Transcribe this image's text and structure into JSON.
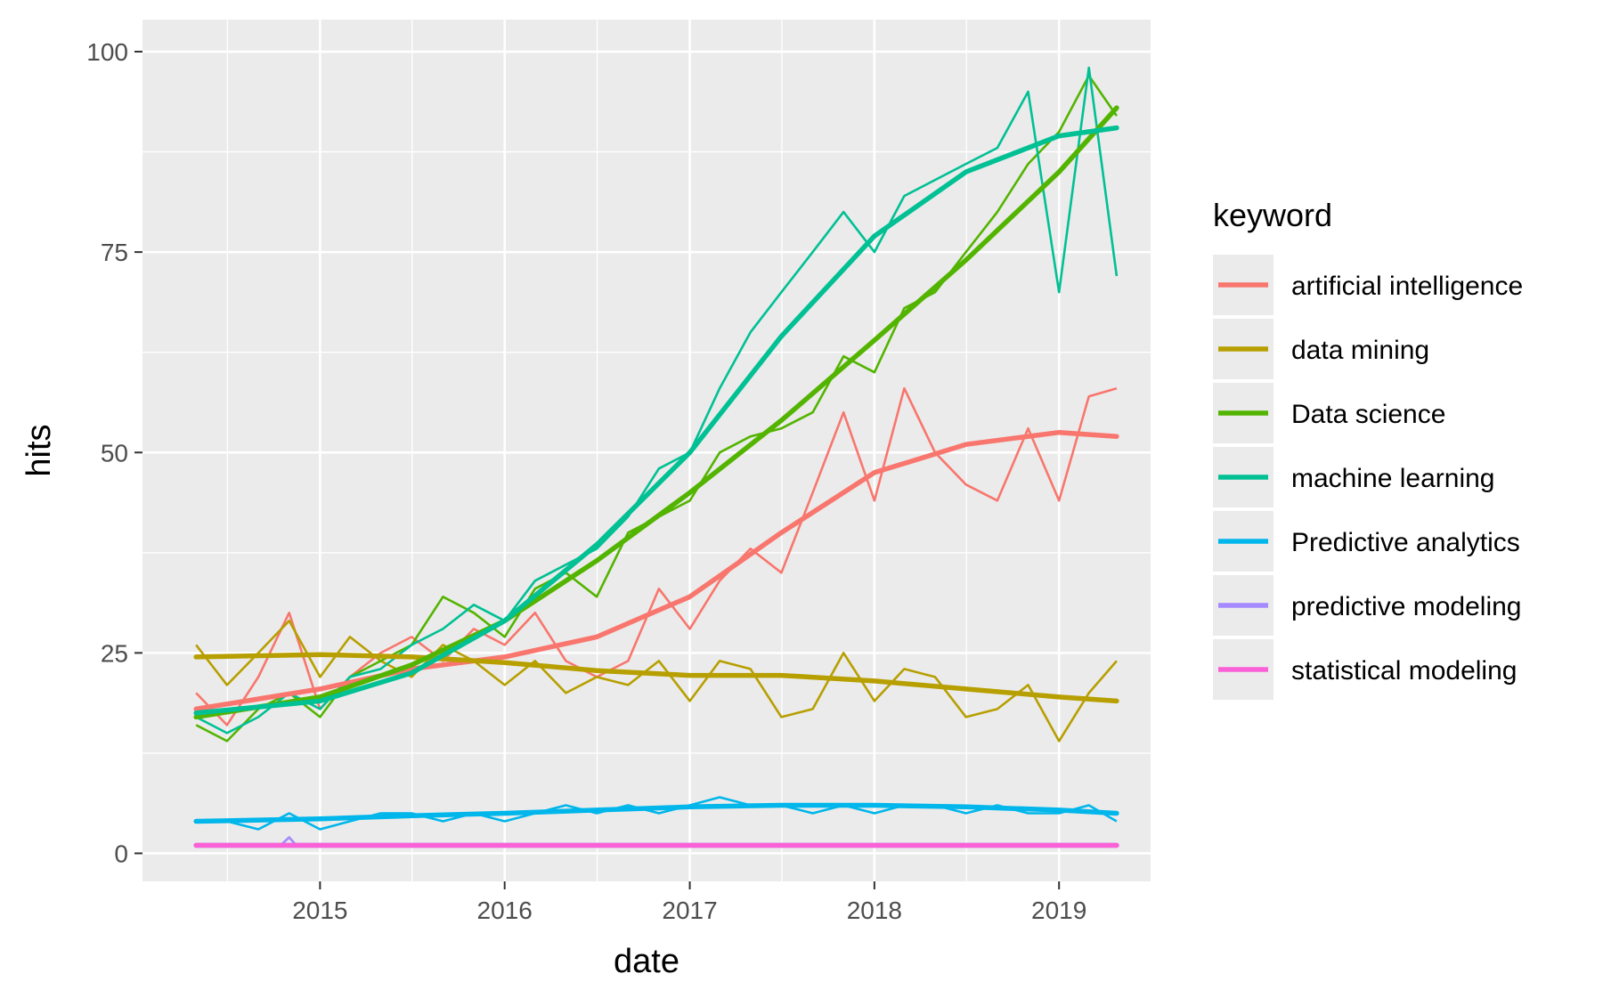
{
  "chart_data": {
    "type": "line",
    "xlabel": "date",
    "ylabel": "hits",
    "xlim": [
      "2014-01-15",
      "2019-07-01"
    ],
    "ylim": [
      -3.5,
      104
    ],
    "x_ticks": [
      "2015-01-01",
      "2016-01-01",
      "2017-01-01",
      "2018-01-01",
      "2019-01-01"
    ],
    "x_tick_labels": [
      "2015",
      "2016",
      "2017",
      "2018",
      "2019"
    ],
    "y_ticks": [
      0,
      25,
      50,
      75,
      100
    ],
    "y_tick_labels": [
      "0",
      "25",
      "50",
      "75",
      "100"
    ],
    "grid": true,
    "background": "#ebebeb",
    "legend": {
      "title": "keyword",
      "placement": "right",
      "entries": [
        "artificial intelligence",
        "data mining",
        "Data science",
        "machine learning",
        "Predictive analytics",
        "predictive modeling",
        "statistical modeling"
      ]
    },
    "series": [
      {
        "name": "artificial intelligence",
        "color": "#f8766d",
        "x": [
          "2014-05-01",
          "2014-07-01",
          "2014-09-01",
          "2014-11-01",
          "2015-01-01",
          "2015-03-01",
          "2015-05-01",
          "2015-07-01",
          "2015-09-01",
          "2015-11-01",
          "2016-01-01",
          "2016-03-01",
          "2016-05-01",
          "2016-07-01",
          "2016-09-01",
          "2016-11-01",
          "2017-01-01",
          "2017-03-01",
          "2017-05-01",
          "2017-07-01",
          "2017-09-01",
          "2017-11-01",
          "2018-01-01",
          "2018-03-01",
          "2018-05-01",
          "2018-07-01",
          "2018-09-01",
          "2018-11-01",
          "2019-01-01",
          "2019-03-01",
          "2019-04-25"
        ],
        "values": [
          20,
          16,
          22,
          30,
          18,
          22,
          25,
          27,
          24,
          28,
          26,
          30,
          24,
          22,
          24,
          33,
          28,
          34,
          38,
          35,
          45,
          55,
          44,
          58,
          50,
          46,
          44,
          53,
          44,
          57,
          58
        ],
        "smooth_x": [
          "2014-05-01",
          "2015-01-01",
          "2015-07-01",
          "2016-01-01",
          "2016-07-01",
          "2017-01-01",
          "2017-07-01",
          "2018-01-01",
          "2018-07-01",
          "2019-01-01",
          "2019-04-25"
        ],
        "smooth_values": [
          18,
          20.5,
          23,
          24.5,
          27,
          32,
          40,
          47.5,
          51,
          52.5,
          52
        ]
      },
      {
        "name": "data mining",
        "color": "#b79f00",
        "x": [
          "2014-05-01",
          "2014-07-01",
          "2014-09-01",
          "2014-11-01",
          "2015-01-01",
          "2015-03-01",
          "2015-05-01",
          "2015-07-01",
          "2015-09-01",
          "2015-11-01",
          "2016-01-01",
          "2016-03-01",
          "2016-05-01",
          "2016-07-01",
          "2016-09-01",
          "2016-11-01",
          "2017-01-01",
          "2017-03-01",
          "2017-05-01",
          "2017-07-01",
          "2017-09-01",
          "2017-11-01",
          "2018-01-01",
          "2018-03-01",
          "2018-05-01",
          "2018-07-01",
          "2018-09-01",
          "2018-11-01",
          "2019-01-01",
          "2019-03-01",
          "2019-04-25"
        ],
        "values": [
          26,
          21,
          25,
          29,
          22,
          27,
          24,
          22,
          26,
          24,
          21,
          24,
          20,
          22,
          21,
          24,
          19,
          24,
          23,
          17,
          18,
          25,
          19,
          23,
          22,
          17,
          18,
          21,
          14,
          20,
          24
        ],
        "smooth_x": [
          "2014-05-01",
          "2015-01-01",
          "2015-07-01",
          "2016-01-01",
          "2016-07-01",
          "2017-01-01",
          "2017-07-01",
          "2018-01-01",
          "2018-07-01",
          "2019-01-01",
          "2019-04-25"
        ],
        "smooth_values": [
          24.5,
          24.8,
          24.5,
          23.8,
          22.8,
          22.2,
          22.2,
          21.5,
          20.5,
          19.5,
          19
        ]
      },
      {
        "name": "Data science",
        "color": "#53b400",
        "x": [
          "2014-05-01",
          "2014-07-01",
          "2014-09-01",
          "2014-11-01",
          "2015-01-01",
          "2015-03-01",
          "2015-05-01",
          "2015-07-01",
          "2015-09-01",
          "2015-11-01",
          "2016-01-01",
          "2016-03-01",
          "2016-05-01",
          "2016-07-01",
          "2016-09-01",
          "2016-11-01",
          "2017-01-01",
          "2017-03-01",
          "2017-05-01",
          "2017-07-01",
          "2017-09-01",
          "2017-11-01",
          "2018-01-01",
          "2018-03-01",
          "2018-05-01",
          "2018-07-01",
          "2018-09-01",
          "2018-11-01",
          "2019-01-01",
          "2019-03-01",
          "2019-04-25"
        ],
        "values": [
          16,
          14,
          18,
          20,
          17,
          22,
          24,
          26,
          32,
          30,
          27,
          33,
          35,
          32,
          40,
          42,
          44,
          50,
          52,
          53,
          55,
          62,
          60,
          68,
          70,
          75,
          80,
          86,
          90,
          97,
          92
        ],
        "smooth_x": [
          "2014-05-01",
          "2015-01-01",
          "2015-07-01",
          "2016-01-01",
          "2016-07-01",
          "2017-01-01",
          "2017-07-01",
          "2018-01-01",
          "2018-07-01",
          "2019-01-01",
          "2019-04-25"
        ],
        "smooth_values": [
          17,
          19.5,
          23.5,
          29,
          36.5,
          45,
          54,
          64,
          74,
          85,
          93
        ]
      },
      {
        "name": "machine learning",
        "color": "#00c094",
        "x": [
          "2014-05-01",
          "2014-07-01",
          "2014-09-01",
          "2014-11-01",
          "2015-01-01",
          "2015-03-01",
          "2015-05-01",
          "2015-07-01",
          "2015-09-01",
          "2015-11-01",
          "2016-01-01",
          "2016-03-01",
          "2016-05-01",
          "2016-07-01",
          "2016-09-01",
          "2016-11-01",
          "2017-01-01",
          "2017-03-01",
          "2017-05-01",
          "2017-07-01",
          "2017-09-01",
          "2017-11-01",
          "2018-01-01",
          "2018-03-01",
          "2018-05-01",
          "2018-07-01",
          "2018-09-01",
          "2018-11-01",
          "2019-01-01",
          "2019-03-01",
          "2019-04-25"
        ],
        "values": [
          17,
          15,
          17,
          20,
          18,
          22,
          23,
          26,
          28,
          31,
          29,
          34,
          36,
          38,
          42,
          48,
          50,
          58,
          65,
          70,
          75,
          80,
          75,
          82,
          84,
          86,
          88,
          95,
          70,
          98,
          72
        ],
        "smooth_x": [
          "2014-05-01",
          "2015-01-01",
          "2015-07-01",
          "2016-01-01",
          "2016-07-01",
          "2017-01-01",
          "2017-07-01",
          "2018-01-01",
          "2018-07-01",
          "2019-01-01",
          "2019-04-25"
        ],
        "smooth_values": [
          17.5,
          19,
          22.5,
          29,
          38.5,
          50,
          64.5,
          77,
          85,
          89.5,
          90.5
        ]
      },
      {
        "name": "Predictive analytics",
        "color": "#00b6eb",
        "x": [
          "2014-05-01",
          "2014-07-01",
          "2014-09-01",
          "2014-11-01",
          "2015-01-01",
          "2015-03-01",
          "2015-05-01",
          "2015-07-01",
          "2015-09-01",
          "2015-11-01",
          "2016-01-01",
          "2016-03-01",
          "2016-05-01",
          "2016-07-01",
          "2016-09-01",
          "2016-11-01",
          "2017-01-01",
          "2017-03-01",
          "2017-05-01",
          "2017-07-01",
          "2017-09-01",
          "2017-11-01",
          "2018-01-01",
          "2018-03-01",
          "2018-05-01",
          "2018-07-01",
          "2018-09-01",
          "2018-11-01",
          "2019-01-01",
          "2019-03-01",
          "2019-04-25"
        ],
        "values": [
          4,
          4,
          3,
          5,
          3,
          4,
          5,
          5,
          4,
          5,
          4,
          5,
          6,
          5,
          6,
          5,
          6,
          7,
          6,
          6,
          5,
          6,
          5,
          6,
          6,
          5,
          6,
          5,
          5,
          6,
          4
        ],
        "smooth_x": [
          "2014-05-01",
          "2015-01-01",
          "2015-07-01",
          "2016-01-01",
          "2016-07-01",
          "2017-01-01",
          "2017-07-01",
          "2018-01-01",
          "2018-07-01",
          "2019-01-01",
          "2019-04-25"
        ],
        "smooth_values": [
          4,
          4.3,
          4.7,
          5,
          5.4,
          5.8,
          6,
          6,
          5.8,
          5.4,
          5
        ]
      },
      {
        "name": "predictive modeling",
        "color": "#a58aff",
        "x": [
          "2014-05-01",
          "2014-10-15",
          "2014-11-01",
          "2014-11-15",
          "2015-06-01",
          "2016-06-01",
          "2017-06-01",
          "2018-06-01",
          "2019-04-25"
        ],
        "values": [
          1,
          1,
          2,
          1,
          1,
          1,
          1,
          1,
          1
        ],
        "smooth_x": [
          "2014-05-01",
          "2019-04-25"
        ],
        "smooth_values": [
          1,
          1
        ]
      },
      {
        "name": "statistical modeling",
        "color": "#fb61d7",
        "x": [
          "2014-05-01",
          "2019-04-25"
        ],
        "values": [
          1,
          1
        ],
        "smooth_x": [
          "2014-05-01",
          "2019-04-25"
        ],
        "smooth_values": [
          1,
          1
        ]
      }
    ]
  }
}
